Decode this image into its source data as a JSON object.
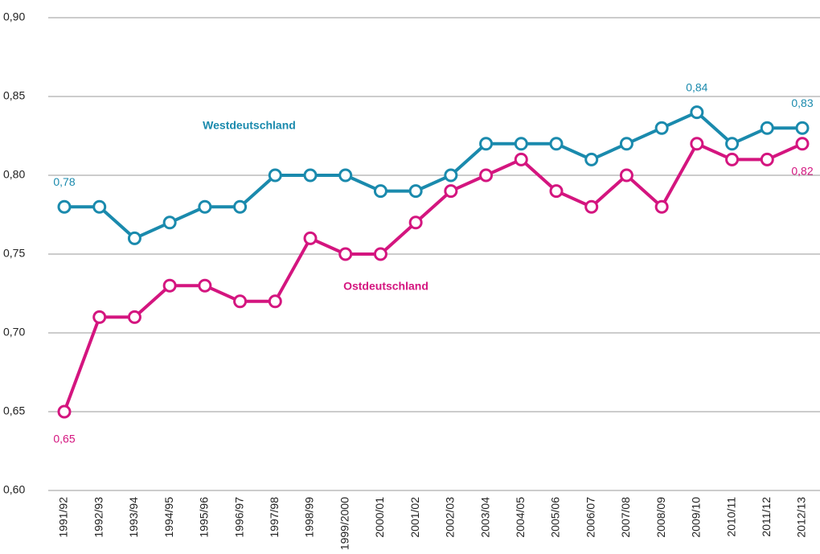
{
  "chart_data": {
    "type": "line",
    "categories": [
      "1991/92",
      "1992/93",
      "1993/94",
      "1994/95",
      "1995/96",
      "1996/97",
      "1997/98",
      "1998/99",
      "1999/2000",
      "2000/01",
      "2001/02",
      "2002/03",
      "2003/04",
      "2004/05",
      "2005/06",
      "2006/07",
      "2007/08",
      "2008/09",
      "2009/10",
      "2010/11",
      "2011/12",
      "2012/13"
    ],
    "series": [
      {
        "name": "Westdeutschland",
        "color": "#1a8aad",
        "values": [
          0.78,
          0.78,
          0.76,
          0.77,
          0.78,
          0.78,
          0.8,
          0.8,
          0.8,
          0.79,
          0.79,
          0.8,
          0.82,
          0.82,
          0.82,
          0.81,
          0.82,
          0.83,
          0.84,
          0.82,
          0.83,
          0.83
        ],
        "value_labels": [
          "0,78",
          null,
          null,
          null,
          null,
          null,
          null,
          null,
          null,
          null,
          null,
          null,
          null,
          null,
          null,
          null,
          null,
          null,
          "0,84",
          null,
          null,
          "0,83"
        ]
      },
      {
        "name": "Ostdeutschland",
        "color": "#d4157f",
        "values": [
          0.65,
          0.71,
          0.71,
          0.73,
          0.73,
          0.72,
          0.72,
          0.76,
          0.75,
          0.75,
          0.77,
          0.79,
          0.8,
          0.81,
          0.79,
          0.78,
          0.8,
          0.78,
          0.82,
          0.81,
          0.81,
          0.82
        ],
        "value_labels": [
          "0,65",
          null,
          null,
          null,
          null,
          null,
          null,
          null,
          null,
          null,
          null,
          null,
          null,
          null,
          null,
          null,
          null,
          null,
          null,
          null,
          null,
          "0,82"
        ]
      }
    ],
    "ylim": [
      0.6,
      0.9
    ],
    "yticks": [
      {
        "value": 0.6,
        "label": "0,60"
      },
      {
        "value": 0.65,
        "label": "0,65"
      },
      {
        "value": 0.7,
        "label": "0,70"
      },
      {
        "value": 0.75,
        "label": "0,75"
      },
      {
        "value": 0.8,
        "label": "0,80"
      },
      {
        "value": 0.85,
        "label": "0,85"
      },
      {
        "value": 0.9,
        "label": "0,90"
      }
    ],
    "grid": true
  }
}
